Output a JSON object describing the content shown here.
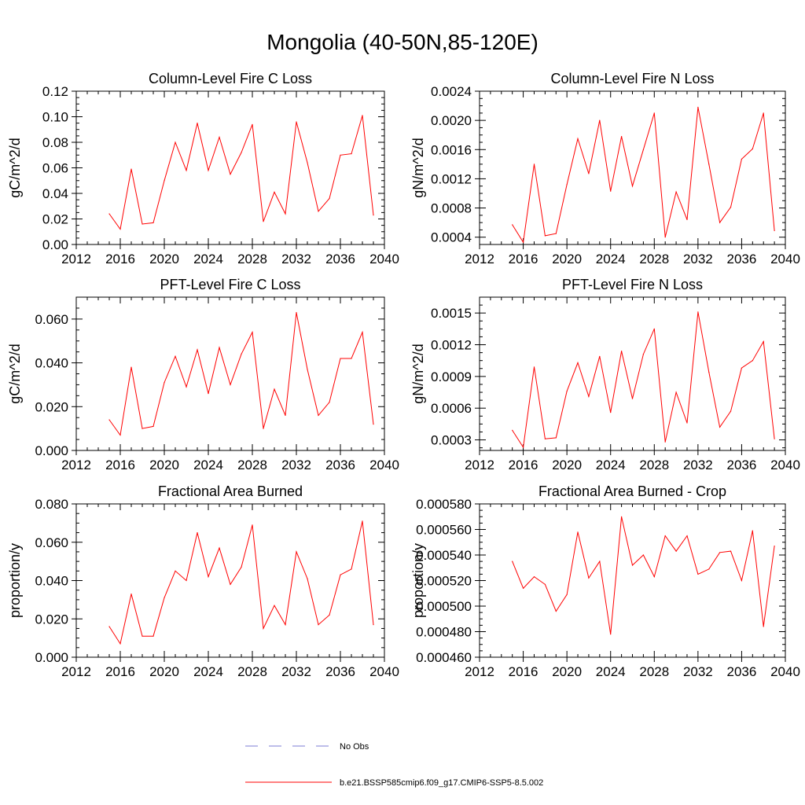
{
  "figure": {
    "title": "Mongolia (40-50N,85-120E)"
  },
  "legend": {
    "entries": [
      {
        "label": "No Obs",
        "color": "#7b7bd6",
        "style": "dashed"
      },
      {
        "label": "b.e21.BSSP585cmip6.f09_g17.CMIP6-SSP5-8.5.002",
        "color": "#ff0000",
        "style": "solid"
      }
    ]
  },
  "chart_data": [
    {
      "type": "line",
      "title": "Column-Level Fire C Loss",
      "ylabel": "gC/m^2/d",
      "xlim": [
        2012,
        2040
      ],
      "xticks": [
        2012,
        2016,
        2020,
        2024,
        2028,
        2032,
        2036,
        2040
      ],
      "ylim": [
        0,
        0.12
      ],
      "yticks": [
        0.0,
        0.02,
        0.04,
        0.06,
        0.08,
        0.1,
        0.12
      ],
      "ytick_labels": [
        "0.00",
        "0.02",
        "0.04",
        "0.06",
        "0.08",
        "0.10",
        "0.12"
      ],
      "series": [
        {
          "name": "b.e21.BSSP585cmip6.f09_g17.CMIP6-SSP5-8.5.002",
          "color": "#ff0000",
          "x": [
            2015,
            2016,
            2017,
            2018,
            2019,
            2020,
            2021,
            2022,
            2023,
            2024,
            2025,
            2026,
            2027,
            2028,
            2029,
            2030,
            2031,
            2032,
            2033,
            2034,
            2035,
            2036,
            2037,
            2038,
            2039
          ],
          "values": [
            0.024,
            0.012,
            0.059,
            0.016,
            0.017,
            0.05,
            0.08,
            0.058,
            0.095,
            0.058,
            0.084,
            0.055,
            0.072,
            0.094,
            0.018,
            0.041,
            0.024,
            0.096,
            0.064,
            0.026,
            0.036,
            0.07,
            0.071,
            0.101,
            0.023
          ]
        }
      ]
    },
    {
      "type": "line",
      "title": "Column-Level Fire N Loss",
      "ylabel": "gN/m^2/d",
      "xlim": [
        2012,
        2040
      ],
      "xticks": [
        2012,
        2016,
        2020,
        2024,
        2028,
        2032,
        2036,
        2040
      ],
      "ylim": [
        0.0003,
        0.0024
      ],
      "yticks": [
        0.0004,
        0.0008,
        0.0012,
        0.0016,
        0.002,
        0.0024
      ],
      "ytick_labels": [
        "0.0004",
        "0.0008",
        "0.0012",
        "0.0016",
        "0.0020",
        "0.0024"
      ],
      "series": [
        {
          "name": "b.e21.BSSP585cmip6.f09_g17.CMIP6-SSP5-8.5.002",
          "color": "#ff0000",
          "x": [
            2015,
            2016,
            2017,
            2018,
            2019,
            2020,
            2021,
            2022,
            2023,
            2024,
            2025,
            2026,
            2027,
            2028,
            2029,
            2030,
            2031,
            2032,
            2033,
            2034,
            2035,
            2036,
            2037,
            2038,
            2039
          ],
          "values": [
            0.00057,
            0.00033,
            0.0014,
            0.00042,
            0.00045,
            0.00112,
            0.00175,
            0.00127,
            0.002,
            0.00103,
            0.00178,
            0.0011,
            0.0016,
            0.0021,
            0.0004,
            0.00102,
            0.00064,
            0.00218,
            0.0014,
            0.0006,
            0.00081,
            0.00147,
            0.00161,
            0.0021,
            0.00049
          ]
        }
      ]
    },
    {
      "type": "line",
      "title": "PFT-Level Fire C Loss",
      "ylabel": "gC/m^2/d",
      "xlim": [
        2012,
        2040
      ],
      "xticks": [
        2012,
        2016,
        2020,
        2024,
        2028,
        2032,
        2036,
        2040
      ],
      "ylim": [
        0,
        0.07
      ],
      "yticks": [
        0.0,
        0.02,
        0.04,
        0.06
      ],
      "ytick_labels": [
        "0.000",
        "0.020",
        "0.040",
        "0.060"
      ],
      "series": [
        {
          "name": "b.e21.BSSP585cmip6.f09_g17.CMIP6-SSP5-8.5.002",
          "color": "#ff0000",
          "x": [
            2015,
            2016,
            2017,
            2018,
            2019,
            2020,
            2021,
            2022,
            2023,
            2024,
            2025,
            2026,
            2027,
            2028,
            2029,
            2030,
            2031,
            2032,
            2033,
            2034,
            2035,
            2036,
            2037,
            2038,
            2039
          ],
          "values": [
            0.014,
            0.007,
            0.038,
            0.01,
            0.011,
            0.031,
            0.043,
            0.029,
            0.046,
            0.026,
            0.047,
            0.03,
            0.044,
            0.054,
            0.01,
            0.028,
            0.016,
            0.063,
            0.037,
            0.016,
            0.022,
            0.042,
            0.042,
            0.054,
            0.012
          ]
        }
      ]
    },
    {
      "type": "line",
      "title": "PFT-Level Fire N Loss",
      "ylabel": "gN/m^2/d",
      "xlim": [
        2012,
        2040
      ],
      "xticks": [
        2012,
        2016,
        2020,
        2024,
        2028,
        2032,
        2036,
        2040
      ],
      "ylim": [
        0.0002,
        0.00165
      ],
      "yticks": [
        0.0003,
        0.0006,
        0.0009,
        0.0012,
        0.0015
      ],
      "ytick_labels": [
        "0.0003",
        "0.0006",
        "0.0009",
        "0.0012",
        "0.0015"
      ],
      "series": [
        {
          "name": "b.e21.BSSP585cmip6.f09_g17.CMIP6-SSP5-8.5.002",
          "color": "#ff0000",
          "x": [
            2015,
            2016,
            2017,
            2018,
            2019,
            2020,
            2021,
            2022,
            2023,
            2024,
            2025,
            2026,
            2027,
            2028,
            2029,
            2030,
            2031,
            2032,
            2033,
            2034,
            2035,
            2036,
            2037,
            2038,
            2039
          ],
          "values": [
            0.00039,
            0.00023,
            0.00099,
            0.00031,
            0.00032,
            0.00076,
            0.00103,
            0.00071,
            0.00109,
            0.00056,
            0.00114,
            0.00069,
            0.00111,
            0.00135,
            0.00028,
            0.00075,
            0.00046,
            0.00151,
            0.00094,
            0.00042,
            0.00057,
            0.00098,
            0.00105,
            0.00123,
            0.00031
          ]
        }
      ]
    },
    {
      "type": "line",
      "title": "Fractional Area Burned",
      "ylabel": "proportion/y",
      "xlim": [
        2012,
        2040
      ],
      "xticks": [
        2012,
        2016,
        2020,
        2024,
        2028,
        2032,
        2036,
        2040
      ],
      "ylim": [
        0,
        0.08
      ],
      "yticks": [
        0.0,
        0.02,
        0.04,
        0.06,
        0.08
      ],
      "ytick_labels": [
        "0.000",
        "0.020",
        "0.040",
        "0.060",
        "0.080"
      ],
      "series": [
        {
          "name": "b.e21.BSSP585cmip6.f09_g17.CMIP6-SSP5-8.5.002",
          "color": "#ff0000",
          "x": [
            2015,
            2016,
            2017,
            2018,
            2019,
            2020,
            2021,
            2022,
            2023,
            2024,
            2025,
            2026,
            2027,
            2028,
            2029,
            2030,
            2031,
            2032,
            2033,
            2034,
            2035,
            2036,
            2037,
            2038,
            2039
          ],
          "values": [
            0.016,
            0.007,
            0.033,
            0.011,
            0.011,
            0.031,
            0.045,
            0.04,
            0.065,
            0.042,
            0.057,
            0.038,
            0.047,
            0.069,
            0.015,
            0.027,
            0.017,
            0.055,
            0.041,
            0.017,
            0.022,
            0.043,
            0.046,
            0.071,
            0.017
          ]
        }
      ]
    },
    {
      "type": "line",
      "title": "Fractional Area Burned - Crop",
      "ylabel": "proportion/y",
      "xlim": [
        2012,
        2040
      ],
      "xticks": [
        2012,
        2016,
        2020,
        2024,
        2028,
        2032,
        2036,
        2040
      ],
      "ylim": [
        0.00046,
        0.00058
      ],
      "yticks": [
        0.00046,
        0.00048,
        0.0005,
        0.00052,
        0.00054,
        0.00056,
        0.00058
      ],
      "ytick_labels": [
        "0.000460",
        "0.000480",
        "0.000500",
        "0.000520",
        "0.000540",
        "0.000560",
        "0.000580"
      ],
      "series": [
        {
          "name": "b.e21.BSSP585cmip6.f09_g17.CMIP6-SSP5-8.5.002",
          "color": "#ff0000",
          "x": [
            2015,
            2016,
            2017,
            2018,
            2019,
            2020,
            2021,
            2022,
            2023,
            2024,
            2025,
            2026,
            2027,
            2028,
            2029,
            2030,
            2031,
            2032,
            2033,
            2034,
            2035,
            2036,
            2037,
            2038,
            2039
          ],
          "values": [
            0.000535,
            0.000514,
            0.000523,
            0.000517,
            0.000496,
            0.000509,
            0.000558,
            0.000522,
            0.000535,
            0.000478,
            0.00057,
            0.000532,
            0.00054,
            0.000523,
            0.000555,
            0.000543,
            0.000555,
            0.000525,
            0.000529,
            0.000542,
            0.000543,
            0.00052,
            0.000559,
            0.000484,
            0.000547
          ]
        }
      ]
    }
  ]
}
